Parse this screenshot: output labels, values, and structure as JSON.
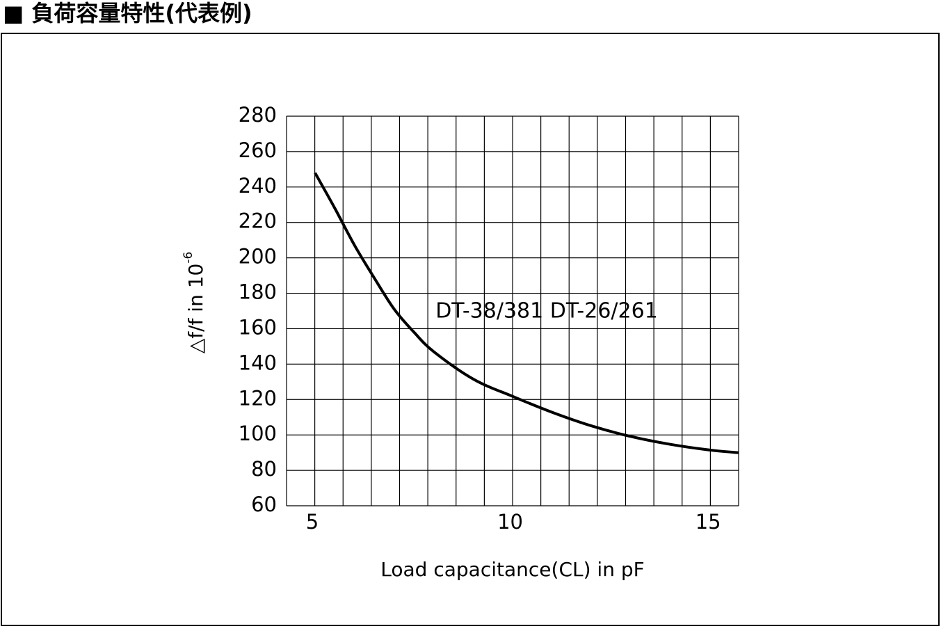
{
  "title": "■ 負荷容量特性(代表例)",
  "chart_data": {
    "type": "line",
    "xlabel": "Load capacitance(CL) in pF",
    "ylabel": "△f/f in 10",
    "ylabel_exponent": "-6",
    "annotation": "DT-38/381 DT-26/261",
    "xlim": [
      4.28,
      15.7
    ],
    "xticks": [
      5,
      10,
      15
    ],
    "ylim": [
      60,
      280
    ],
    "yticks": [
      60,
      80,
      100,
      120,
      140,
      160,
      180,
      200,
      220,
      240,
      260,
      280
    ],
    "grid": true,
    "xgrid_divisions": 16,
    "series": [
      {
        "color": "#000000",
        "x": [
          5,
          5.5,
          6,
          6.5,
          7,
          7.5,
          8,
          9,
          10,
          11,
          12,
          13,
          14,
          15,
          15.7
        ],
        "values": [
          248,
          228,
          207,
          188.5,
          171,
          158,
          147,
          131.5,
          121.7,
          112.7,
          105,
          99,
          94.6,
          91.4,
          90
        ]
      }
    ]
  }
}
